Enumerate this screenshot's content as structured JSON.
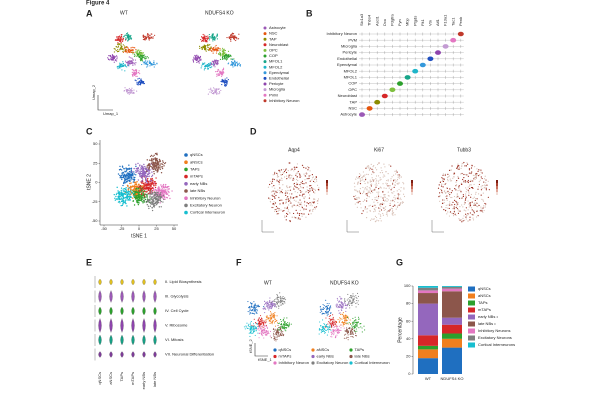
{
  "figure_label": "Figure 4",
  "panel_a": {
    "letter": "A",
    "groups": [
      "WT",
      "NDUFS4 KO"
    ],
    "x_label": "Umap_1",
    "y_label": "Umap_2",
    "legend": [
      {
        "name": "Astrocyte",
        "color": "#9b59b6"
      },
      {
        "name": "NSC",
        "color": "#e6550d"
      },
      {
        "name": "TAP",
        "color": "#8c8c00"
      },
      {
        "name": "Neuroblast",
        "color": "#d62728"
      },
      {
        "name": "OPC",
        "color": "#7fbf3f"
      },
      {
        "name": "COP",
        "color": "#2ca02c"
      },
      {
        "name": "MFOL1",
        "color": "#17a589"
      },
      {
        "name": "MFOL2",
        "color": "#1fb5c9"
      },
      {
        "name": "Ependymal",
        "color": "#3498db"
      },
      {
        "name": "Endothelial",
        "color": "#1f4fc0"
      },
      {
        "name": "Pericyte",
        "color": "#8e44ad"
      },
      {
        "name": "Microglia",
        "color": "#c39bd3"
      },
      {
        "name": "PVM",
        "color": "#e377c2"
      },
      {
        "name": "Inhibitory Neuron",
        "color": "#c0392b"
      }
    ]
  },
  "panel_b": {
    "letter": "B",
    "genes": [
      "Slc1a3",
      "Thbs4",
      "Ascl1",
      "Dcx",
      "Pdgfra",
      "Fyn",
      "Mbp",
      "Ptgds",
      "Flt1",
      "Vtn",
      "Aif1",
      "F13a1",
      "Tac1",
      "Penk"
    ],
    "cell_types": [
      "Inhibitory Neuron",
      "PVM",
      "Microglia",
      "Pericyte",
      "Endothelial",
      "Ependymal",
      "MFOL2",
      "MFOL1",
      "COP",
      "OPC",
      "Neuroblast",
      "TAP",
      "NSC",
      "Astrocyte"
    ]
  },
  "panel_c": {
    "letter": "C",
    "x_label": "tSNE 1",
    "y_label": "tSNE 2",
    "xticks": [
      -50,
      -25,
      0,
      25,
      50
    ],
    "yticks": [
      50,
      25,
      0,
      -25,
      -50
    ],
    "legend": [
      {
        "name": "qNSCs",
        "color": "#1f6fc0"
      },
      {
        "name": "aNSCs",
        "color": "#f07f1e"
      },
      {
        "name": "TAPs",
        "color": "#2ca02c"
      },
      {
        "name": "mTAPs",
        "color": "#d62728"
      },
      {
        "name": "early NBs",
        "color": "#9467bd"
      },
      {
        "name": "late NBs",
        "color": "#8c564b"
      },
      {
        "name": "Inhibitory Neuron",
        "color": "#e377c2"
      },
      {
        "name": "Excitatory Neuron",
        "color": "#7f7f7f"
      },
      {
        "name": "Cortical Interneuron",
        "color": "#17becf"
      }
    ]
  },
  "panel_d": {
    "letter": "D",
    "genes": [
      "Aqp4",
      "Ki67",
      "Tubb3"
    ]
  },
  "panel_e": {
    "letter": "E",
    "pathways": [
      "II. Lipid Biosynthesis",
      "III. Glycolysis",
      "IV. Cell Cycle",
      "V. Ribosome",
      "VI. Mitosis",
      "VII. Neuronal Differentiation"
    ],
    "cell_types": [
      "qNSCs",
      "aNSCs",
      "TAPs",
      "mTAPs",
      "early NBs",
      "late NBs"
    ]
  },
  "panel_f": {
    "letter": "F",
    "groups": [
      "WT",
      "NDUFS4 KO"
    ],
    "x_label": "tSNE_1",
    "y_label": "tSNE_2",
    "legend": [
      {
        "name": "qNSCs",
        "color": "#1f6fc0"
      },
      {
        "name": "mTAPs",
        "color": "#d62728"
      },
      {
        "name": "Inhibitory Neuron",
        "color": "#e377c2"
      },
      {
        "name": "aNSCs",
        "color": "#f07f1e"
      },
      {
        "name": "early NBs",
        "color": "#9467bd"
      },
      {
        "name": "Excitatory Neuron",
        "color": "#7f7f7f"
      },
      {
        "name": "TAPs",
        "color": "#2ca02c"
      },
      {
        "name": "late NBs",
        "color": "#8c564b"
      },
      {
        "name": "Cortical Interneuron",
        "color": "#17becf"
      }
    ]
  },
  "panel_g": {
    "letter": "G",
    "type": "bar",
    "stacked": true,
    "categories": [
      "WT",
      "NDUFS4 KO"
    ],
    "ylabel": "Percentage",
    "ylim": [
      0,
      100
    ],
    "yticks": [
      0,
      20,
      40,
      60,
      80,
      100
    ],
    "series": [
      {
        "name": "qNSCs",
        "color": "#1f6fc0",
        "values": [
          18,
          30
        ]
      },
      {
        "name": "aNSCs",
        "color": "#f07f1e",
        "values": [
          10,
          10
        ]
      },
      {
        "name": "TAPs",
        "color": "#2ca02c",
        "values": [
          4,
          6
        ]
      },
      {
        "name": "mTAPs",
        "color": "#d62728",
        "values": [
          12,
          10
        ]
      },
      {
        "name": "early NBs •",
        "color": "#9467bd",
        "values": [
          36,
          8
        ]
      },
      {
        "name": "late NBs •",
        "color": "#8c564b",
        "values": [
          12,
          30
        ]
      },
      {
        "name": "Inhibitory Neurons",
        "color": "#e377c2",
        "values": [
          3,
          3
        ]
      },
      {
        "name": "Excitatory Neurons",
        "color": "#7f7f7f",
        "values": [
          3,
          2
        ]
      },
      {
        "name": "Cortical Interneurons",
        "color": "#17becf",
        "values": [
          2,
          1
        ]
      }
    ]
  }
}
